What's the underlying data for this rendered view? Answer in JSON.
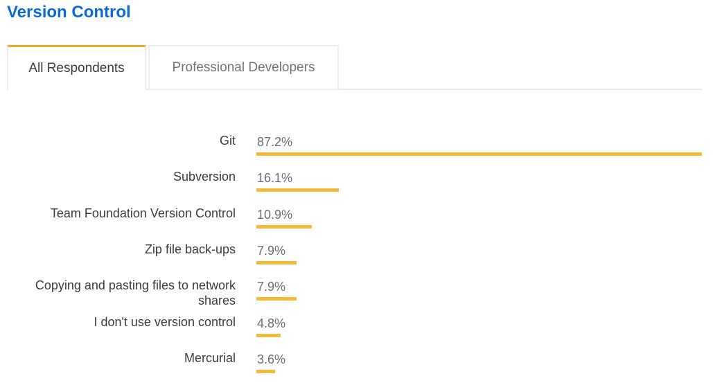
{
  "page": {
    "title": "Version Control"
  },
  "tabs": [
    {
      "label": "All Respondents",
      "active": true
    },
    {
      "label": "Professional Developers",
      "active": false
    }
  ],
  "colors": {
    "title": "#0a6ad6",
    "bar": "#f6b93a",
    "active_tab_accent": "#f3a723"
  },
  "chart_data": {
    "type": "bar",
    "orientation": "horizontal",
    "categories": [
      "Git",
      "Subversion",
      "Team Foundation Version Control",
      "Zip file back-ups",
      "Copying and pasting files to network shares",
      "I don't use version control",
      "Mercurial"
    ],
    "values": [
      87.2,
      16.1,
      10.9,
      7.9,
      7.9,
      4.8,
      3.6
    ],
    "value_labels": [
      "87.2%",
      "16.1%",
      "10.9%",
      "7.9%",
      "7.9%",
      "4.8%",
      "3.6%"
    ],
    "unit": "%",
    "xlim": [
      0,
      87.2
    ],
    "grid": false
  }
}
